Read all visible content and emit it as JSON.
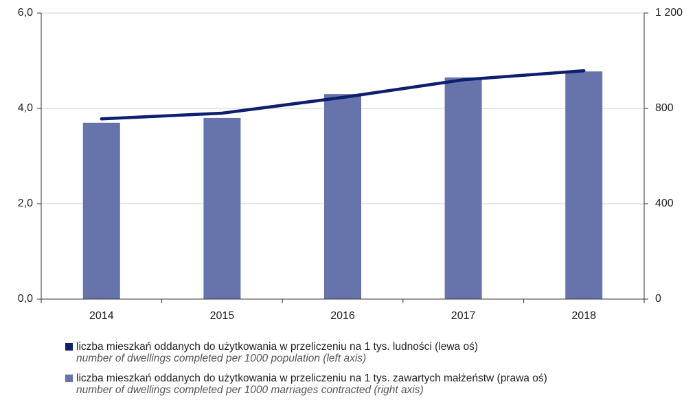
{
  "chart_data": {
    "type": "bar_line",
    "categories": [
      "2014",
      "2015",
      "2016",
      "2017",
      "2018"
    ],
    "series": [
      {
        "name": "liczba mieszkań oddanych do użytkowania w przeliczeniu na 1 tys. ludności (lewa oś)",
        "subtitle": "number of dwellings completed per 1000 population (left axis)",
        "type": "line",
        "color": "#0d1f6e",
        "values": [
          3.78,
          3.9,
          4.23,
          4.6,
          4.79
        ]
      },
      {
        "name": "liczba mieszkań oddanych do użytkowania w przeliczeniu na 1 tys. zawartych małżeństw (prawa oś)",
        "subtitle": "number of dwellings completed per 1000 marriages contracted (right axis)",
        "type": "bar",
        "axis": "y2",
        "color": "#6674ab",
        "values": [
          740,
          760,
          860,
          930,
          955
        ]
      }
    ],
    "ylim": [
      0,
      6
    ],
    "yticks": [
      {
        "value": 0,
        "label": "0,0"
      },
      {
        "value": 2,
        "label": "2,0"
      },
      {
        "value": 4,
        "label": "4,0"
      },
      {
        "value": 6,
        "label": "6,0"
      }
    ],
    "y2lim": [
      0,
      1200
    ],
    "y2ticks": [
      0,
      400,
      800,
      {
        "value": 1200,
        "label": "1 200"
      }
    ],
    "grid": true
  }
}
